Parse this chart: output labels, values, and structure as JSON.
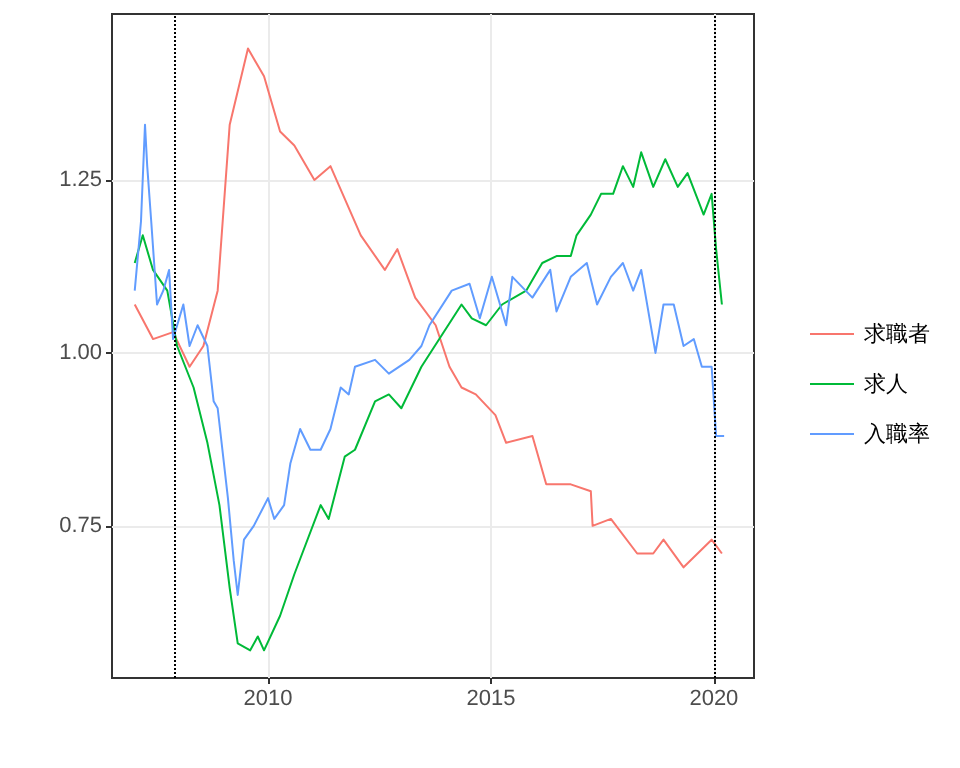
{
  "chart_data": {
    "type": "line",
    "xlim": [
      2006.5,
      2020.9
    ],
    "xticks": [
      2010,
      2015,
      2020
    ],
    "ylim": [
      0.53,
      1.49
    ],
    "yticks": [
      {
        "value": 0.75,
        "label": "0.75"
      },
      {
        "value": 1.0,
        "label": "1.00"
      },
      {
        "value": 1.25,
        "label": "1.25"
      }
    ],
    "grid": true,
    "legend": "right",
    "marker": "none",
    "line_style": "solid",
    "ref_lines": [
      {
        "axis": "x",
        "value": 2007.92,
        "color": "#000000",
        "line_style": "dotted"
      },
      {
        "axis": "x",
        "value": 2020.0,
        "color": "#000000",
        "line_style": "dotted"
      }
    ],
    "series": [
      {
        "name": "求職者",
        "color": "#f8766d",
        "x": [
          2007.01,
          2007.42,
          2007.87,
          2008.24,
          2008.55,
          2008.87,
          2009.14,
          2009.55,
          2009.91,
          2010.27,
          2010.59,
          2011.04,
          2011.4,
          2012.08,
          2012.62,
          2012.9,
          2013.3,
          2013.76,
          2014.07,
          2014.34,
          2014.66,
          2015.1,
          2015.34,
          2015.93,
          2016.24,
          2016.79,
          2017.24,
          2017.28,
          2017.69,
          2018.28,
          2018.64,
          2018.87,
          2019.32,
          2019.95,
          2020.18
        ],
        "values": [
          1.07,
          1.02,
          1.03,
          0.98,
          1.01,
          1.09,
          1.33,
          1.44,
          1.4,
          1.32,
          1.3,
          1.25,
          1.27,
          1.17,
          1.12,
          1.15,
          1.08,
          1.04,
          0.98,
          0.95,
          0.94,
          0.91,
          0.87,
          0.88,
          0.81,
          0.81,
          0.8,
          0.75,
          0.76,
          0.71,
          0.71,
          0.73,
          0.69,
          0.73,
          0.71
        ]
      },
      {
        "name": "求人",
        "color": "#00ba38",
        "x": [
          2007.01,
          2007.19,
          2007.42,
          2007.74,
          2007.96,
          2008.33,
          2008.64,
          2008.91,
          2009.14,
          2009.32,
          2009.6,
          2009.77,
          2009.91,
          2010.27,
          2010.59,
          2011.18,
          2011.36,
          2011.72,
          2011.95,
          2012.4,
          2012.71,
          2012.99,
          2013.44,
          2014.34,
          2014.57,
          2014.89,
          2015.25,
          2015.79,
          2016.15,
          2016.47,
          2016.79,
          2016.92,
          2017.24,
          2017.47,
          2017.74,
          2017.96,
          2018.19,
          2018.37,
          2018.64,
          2018.91,
          2019.19,
          2019.41,
          2019.77,
          2019.95,
          2020.05,
          2020.18
        ],
        "values": [
          1.13,
          1.17,
          1.12,
          1.09,
          1.01,
          0.95,
          0.87,
          0.78,
          0.66,
          0.58,
          0.57,
          0.59,
          0.57,
          0.62,
          0.68,
          0.78,
          0.76,
          0.85,
          0.86,
          0.93,
          0.94,
          0.92,
          0.98,
          1.07,
          1.05,
          1.04,
          1.07,
          1.09,
          1.13,
          1.14,
          1.14,
          1.17,
          1.2,
          1.23,
          1.23,
          1.27,
          1.24,
          1.29,
          1.24,
          1.28,
          1.24,
          1.26,
          1.2,
          1.23,
          1.15,
          1.07
        ]
      },
      {
        "name": "入職率",
        "color": "#619cff",
        "x": [
          2007.01,
          2007.15,
          2007.24,
          2007.29,
          2007.38,
          2007.51,
          2007.65,
          2007.78,
          2007.87,
          2008.1,
          2008.24,
          2008.42,
          2008.64,
          2008.78,
          2008.87,
          2009.1,
          2009.23,
          2009.32,
          2009.46,
          2009.68,
          2010.0,
          2010.14,
          2010.36,
          2010.5,
          2010.72,
          2010.95,
          2011.18,
          2011.4,
          2011.63,
          2011.81,
          2011.95,
          2012.4,
          2012.71,
          2013.17,
          2013.44,
          2013.62,
          2014.12,
          2014.52,
          2014.75,
          2015.02,
          2015.34,
          2015.48,
          2015.93,
          2016.33,
          2016.47,
          2016.79,
          2017.15,
          2017.38,
          2017.69,
          2017.96,
          2018.19,
          2018.37,
          2018.69,
          2018.87,
          2019.1,
          2019.32,
          2019.55,
          2019.73,
          2019.95,
          2020.05,
          2020.23
        ],
        "values": [
          1.09,
          1.19,
          1.33,
          1.27,
          1.19,
          1.07,
          1.09,
          1.12,
          1.02,
          1.07,
          1.01,
          1.04,
          1.01,
          0.93,
          0.92,
          0.79,
          0.7,
          0.65,
          0.73,
          0.75,
          0.79,
          0.76,
          0.78,
          0.84,
          0.89,
          0.86,
          0.86,
          0.89,
          0.95,
          0.94,
          0.98,
          0.99,
          0.97,
          0.99,
          1.01,
          1.04,
          1.09,
          1.1,
          1.05,
          1.11,
          1.04,
          1.11,
          1.08,
          1.12,
          1.06,
          1.11,
          1.13,
          1.07,
          1.11,
          1.13,
          1.09,
          1.12,
          1.0,
          1.07,
          1.07,
          1.01,
          1.02,
          0.98,
          0.98,
          0.88,
          0.88
        ]
      }
    ]
  }
}
